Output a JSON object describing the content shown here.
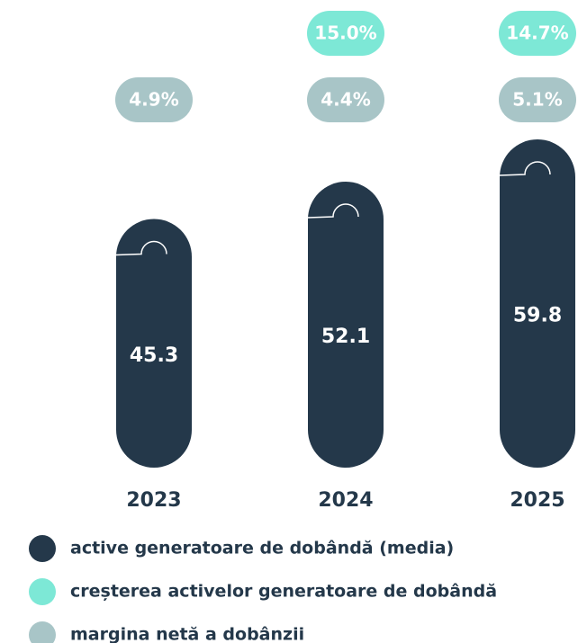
{
  "chart_data": {
    "type": "bar",
    "categories": [
      "2023",
      "2024",
      "2025"
    ],
    "series": [
      {
        "name": "active generatoare de dobândă (media)",
        "color": "#24384a",
        "values": [
          45.3,
          52.1,
          59.8
        ]
      },
      {
        "name": "creșterea activelor generatoare de dobândă",
        "color": "#7de8d6",
        "values": [
          null,
          15.0,
          14.7
        ],
        "value_labels": [
          null,
          "15.0%",
          "14.7%"
        ]
      },
      {
        "name": "margina netă a dobânzii",
        "color": "#a8c5c7",
        "values": [
          4.9,
          4.4,
          5.1
        ],
        "value_labels": [
          "4.9%",
          "4.4%",
          "5.1%"
        ]
      }
    ]
  }
}
